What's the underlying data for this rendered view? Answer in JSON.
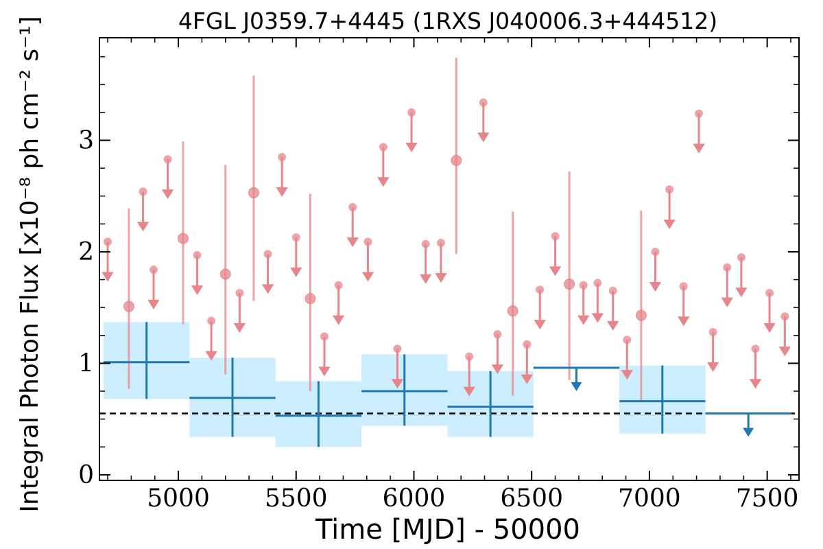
{
  "chart_data": {
    "type": "scatter",
    "title": "4FGL J0359.7+4445 (1RXS J040006.3+444512)",
    "xlabel": "Time [MJD] - 50000",
    "ylabel": "Integral Photon Flux [x10⁻⁸ ph cm⁻² s⁻¹]",
    "xlim": [
      4665,
      7635
    ],
    "ylim": [
      -0.05,
      3.92
    ],
    "x_ticks": [
      5000,
      5500,
      6000,
      6500,
      7000,
      7500
    ],
    "y_ticks": [
      0,
      1,
      2,
      3
    ],
    "reference_flux": 0.55,
    "colors": {
      "short_bins": "#e8858a",
      "long_bins": "#1f77b4",
      "long_band": "#cdeeff",
      "reference": "#000000"
    },
    "series": [
      {
        "bin_width_days": 365,
        "detections": [
          {
            "x": 4865,
            "y": 1.01,
            "ylo": 0.68,
            "yhi": 1.37
          },
          {
            "x": 5230,
            "y": 0.69,
            "ylo": 0.34,
            "yhi": 1.05
          },
          {
            "x": 5595,
            "y": 0.53,
            "ylo": 0.25,
            "yhi": 0.84
          },
          {
            "x": 5960,
            "y": 0.75,
            "ylo": 0.44,
            "yhi": 1.08
          },
          {
            "x": 6325,
            "y": 0.61,
            "ylo": 0.34,
            "yhi": 0.93
          },
          {
            "x": 7055,
            "y": 0.66,
            "ylo": 0.37,
            "yhi": 0.98
          }
        ],
        "upper_limits": [
          {
            "x": 6690,
            "y": 0.96
          },
          {
            "x": 7420,
            "y": 0.55
          }
        ]
      },
      {
        "bin_width_days": 61,
        "detections": [
          {
            "x": 4790,
            "y": 1.51,
            "ylo": 0.77,
            "yhi": 2.39
          },
          {
            "x": 5020,
            "y": 2.12,
            "ylo": 1.35,
            "yhi": 2.99
          },
          {
            "x": 5200,
            "y": 1.8,
            "ylo": 0.9,
            "yhi": 2.78
          },
          {
            "x": 5320,
            "y": 2.53,
            "ylo": 1.56,
            "yhi": 3.58
          },
          {
            "x": 5560,
            "y": 1.58,
            "ylo": 0.75,
            "yhi": 2.52
          },
          {
            "x": 6180,
            "y": 2.82,
            "ylo": 1.98,
            "yhi": 3.74
          },
          {
            "x": 6420,
            "y": 1.47,
            "ylo": 0.71,
            "yhi": 2.36
          },
          {
            "x": 6660,
            "y": 1.71,
            "ylo": 0.85,
            "yhi": 2.72
          },
          {
            "x": 6965,
            "y": 1.43,
            "ylo": 0.66,
            "yhi": 2.37
          }
        ],
        "upper_limits": [
          {
            "x": 4700,
            "y": 2.09
          },
          {
            "x": 4850,
            "y": 2.54
          },
          {
            "x": 4895,
            "y": 1.84
          },
          {
            "x": 4955,
            "y": 2.83
          },
          {
            "x": 5080,
            "y": 1.97
          },
          {
            "x": 5140,
            "y": 1.38
          },
          {
            "x": 5260,
            "y": 1.63
          },
          {
            "x": 5380,
            "y": 1.98
          },
          {
            "x": 5440,
            "y": 2.85
          },
          {
            "x": 5500,
            "y": 2.13
          },
          {
            "x": 5620,
            "y": 1.24
          },
          {
            "x": 5680,
            "y": 1.7
          },
          {
            "x": 5740,
            "y": 2.4
          },
          {
            "x": 5805,
            "y": 2.09
          },
          {
            "x": 5870,
            "y": 2.94
          },
          {
            "x": 5930,
            "y": 1.13
          },
          {
            "x": 5990,
            "y": 3.25
          },
          {
            "x": 6050,
            "y": 2.07
          },
          {
            "x": 6115,
            "y": 2.08
          },
          {
            "x": 6235,
            "y": 1.06
          },
          {
            "x": 6295,
            "y": 3.34
          },
          {
            "x": 6355,
            "y": 1.26
          },
          {
            "x": 6480,
            "y": 1.17
          },
          {
            "x": 6535,
            "y": 1.66
          },
          {
            "x": 6600,
            "y": 2.14
          },
          {
            "x": 6720,
            "y": 1.7
          },
          {
            "x": 6780,
            "y": 1.72
          },
          {
            "x": 6845,
            "y": 1.65
          },
          {
            "x": 6905,
            "y": 1.21
          },
          {
            "x": 7025,
            "y": 2.0
          },
          {
            "x": 7085,
            "y": 2.56
          },
          {
            "x": 7145,
            "y": 1.69
          },
          {
            "x": 7210,
            "y": 3.24
          },
          {
            "x": 7270,
            "y": 1.28
          },
          {
            "x": 7330,
            "y": 1.86
          },
          {
            "x": 7390,
            "y": 1.95
          },
          {
            "x": 7450,
            "y": 1.13
          },
          {
            "x": 7510,
            "y": 1.63
          },
          {
            "x": 7575,
            "y": 1.42
          }
        ]
      }
    ]
  }
}
